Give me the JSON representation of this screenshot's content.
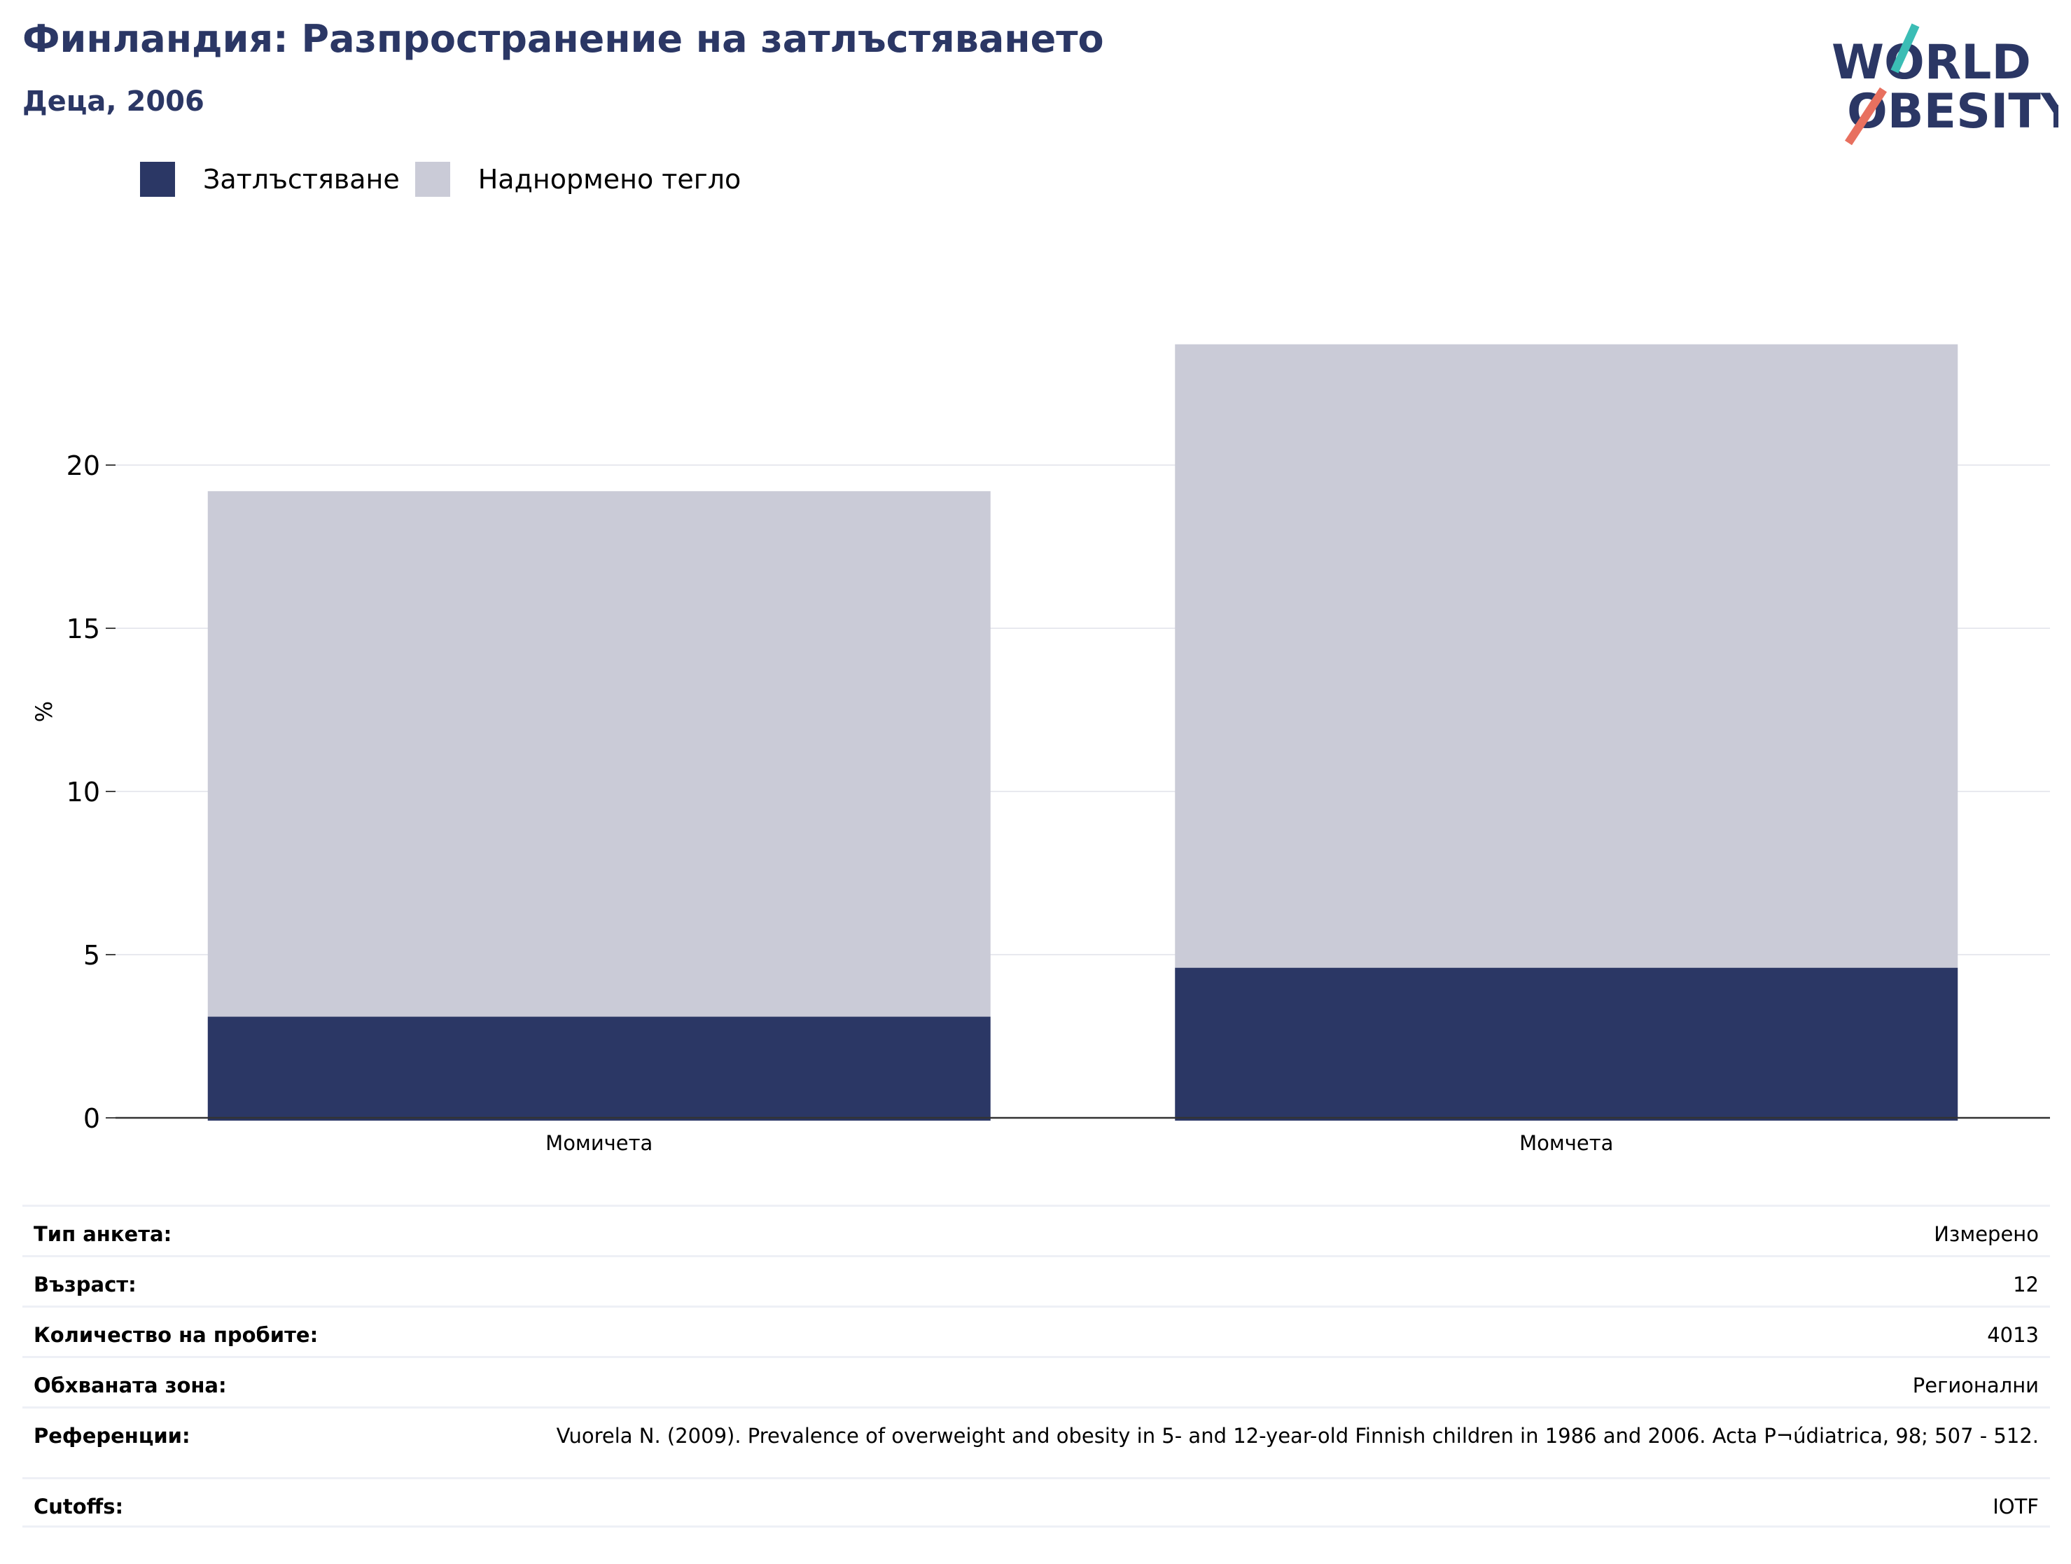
{
  "header": {
    "title": "Финландия: Разпространение на затлъстяването",
    "subtitle": "Деца, 2006"
  },
  "logo": {
    "line1": "WORLD",
    "line2": "OBESITY"
  },
  "colors": {
    "obesity": "#2b3765",
    "overweight": "#cacbd7",
    "title": "#2b3765",
    "logo_teal": "#3bbdb5",
    "logo_red": "#e8705f"
  },
  "legend": [
    {
      "label": "Затлъстяване",
      "color": "#2b3765"
    },
    {
      "label": "Наднормено тегло",
      "color": "#cacbd7"
    }
  ],
  "chart_data": {
    "type": "bar",
    "stacked": true,
    "categories": [
      "Момичета",
      "Момчета"
    ],
    "series": [
      {
        "name": "Затлъстяване",
        "values": [
          3.1,
          4.6
        ]
      },
      {
        "name": "Наднормено тегло",
        "values": [
          16.1,
          19.1
        ]
      }
    ],
    "ylabel": "%",
    "ylim": [
      0,
      25
    ],
    "yticks": [
      0,
      5,
      10,
      15,
      20
    ],
    "grid": true,
    "legend_position": "top-left"
  },
  "info": [
    {
      "label": "Тип анкета:",
      "value": "Измерено"
    },
    {
      "label": "Възраст:",
      "value": "12"
    },
    {
      "label": "Количество на пробите:",
      "value": "4013"
    },
    {
      "label": "Обхваната зона:",
      "value": "Регионални"
    },
    {
      "label": "Референции:",
      "value": "Vuorela N. (2009). Prevalence of overweight and obesity in 5- and 12-year-old Finnish children in 1986 and 2006. Acta P¬údiatrica, 98; 507 - 512."
    },
    {
      "label": "Cutoffs:",
      "value": "IOTF"
    }
  ]
}
